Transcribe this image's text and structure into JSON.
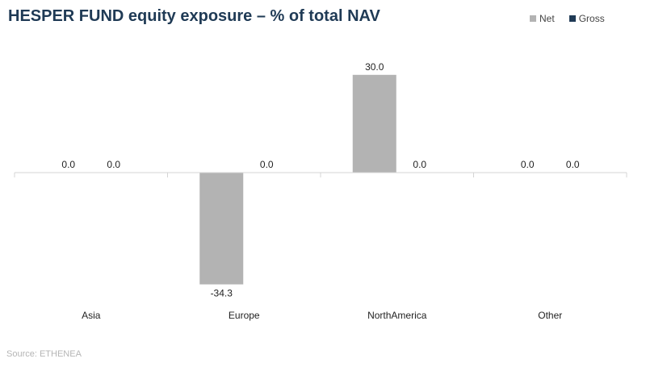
{
  "title": "HESPER FUND equity exposure – % of total NAV",
  "source": "Source: ETHENEA",
  "colors": {
    "net": "#b3b3b3",
    "gross": "#1f3a55",
    "axis": "#d4d4d4",
    "text": "#222222"
  },
  "chart_data": {
    "type": "bar",
    "title": "HESPER FUND equity exposure – % of total NAV",
    "categories": [
      "Asia",
      "Europe",
      "NorthAmerica",
      "Other"
    ],
    "series": [
      {
        "name": "Net",
        "values": [
          0.0,
          -34.3,
          30.0,
          0.0
        ]
      },
      {
        "name": "Gross",
        "values": [
          0.0,
          0.0,
          0.0,
          0.0
        ]
      }
    ],
    "value_labels": [
      [
        "0.0",
        "-34.3",
        "30.0",
        "0.0"
      ],
      [
        "0.0",
        "0.0",
        "0.0",
        "0.0"
      ]
    ],
    "ylim": [
      -34.3,
      30.0
    ],
    "grid": false,
    "legend": "top-right",
    "xlabel": "",
    "ylabel": ""
  }
}
